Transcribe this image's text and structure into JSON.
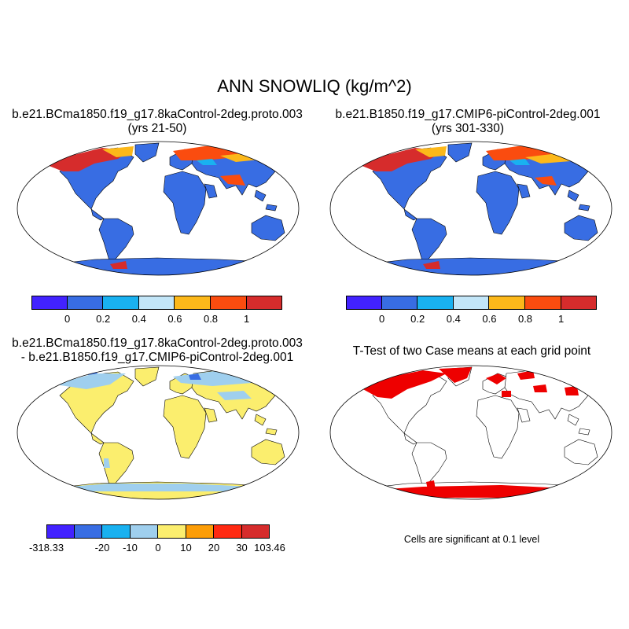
{
  "title": "ANN SNOWLIQ (kg/m^2)",
  "panels": [
    {
      "id": "case",
      "title_lines": [
        "b.e21.BCma1850.f19_g17.8kaControl-2deg.proto.003",
        "(yrs 21-50)"
      ],
      "colorbar": {
        "colors": [
          "#4222ff",
          "#386de3",
          "#19b1f0",
          "#c3e6f8",
          "#fcb81a",
          "#fa4c0f",
          "#d62c2c"
        ],
        "labels": [
          "0",
          "0.2",
          "0.4",
          "0.6",
          "0.8",
          "1"
        ]
      }
    },
    {
      "id": "control",
      "title_lines": [
        "b.e21.B1850.f19_g17.CMIP6-piControl-2deg.001",
        "(yrs 301-330)"
      ],
      "colorbar": {
        "colors": [
          "#4222ff",
          "#386de3",
          "#19b1f0",
          "#c3e6f8",
          "#fcb81a",
          "#fa4c0f",
          "#d62c2c"
        ],
        "labels": [
          "0",
          "0.2",
          "0.4",
          "0.6",
          "0.8",
          "1"
        ]
      }
    },
    {
      "id": "difference",
      "title_lines": [
        "b.e21.BCma1850.f19_g17.8kaControl-2deg.proto.003",
        "- b.e21.B1850.f19_g17.CMIP6-piControl-2deg.001"
      ],
      "colorbar": {
        "colors": [
          "#4222ff",
          "#386de3",
          "#19b1f0",
          "#9fcfee",
          "#fbee6e",
          "#fc9d07",
          "#ff2a12",
          "#d62c2c"
        ],
        "labels": [
          "-318.33",
          "-20",
          "-10",
          "0",
          "10",
          "20",
          "30",
          "103.46"
        ]
      }
    },
    {
      "id": "ttest",
      "title_lines": [
        "T-Test of two Case means at each grid point"
      ],
      "note": "Cells are significant at 0.1 level",
      "significant_color": "#ee0000"
    }
  ]
}
